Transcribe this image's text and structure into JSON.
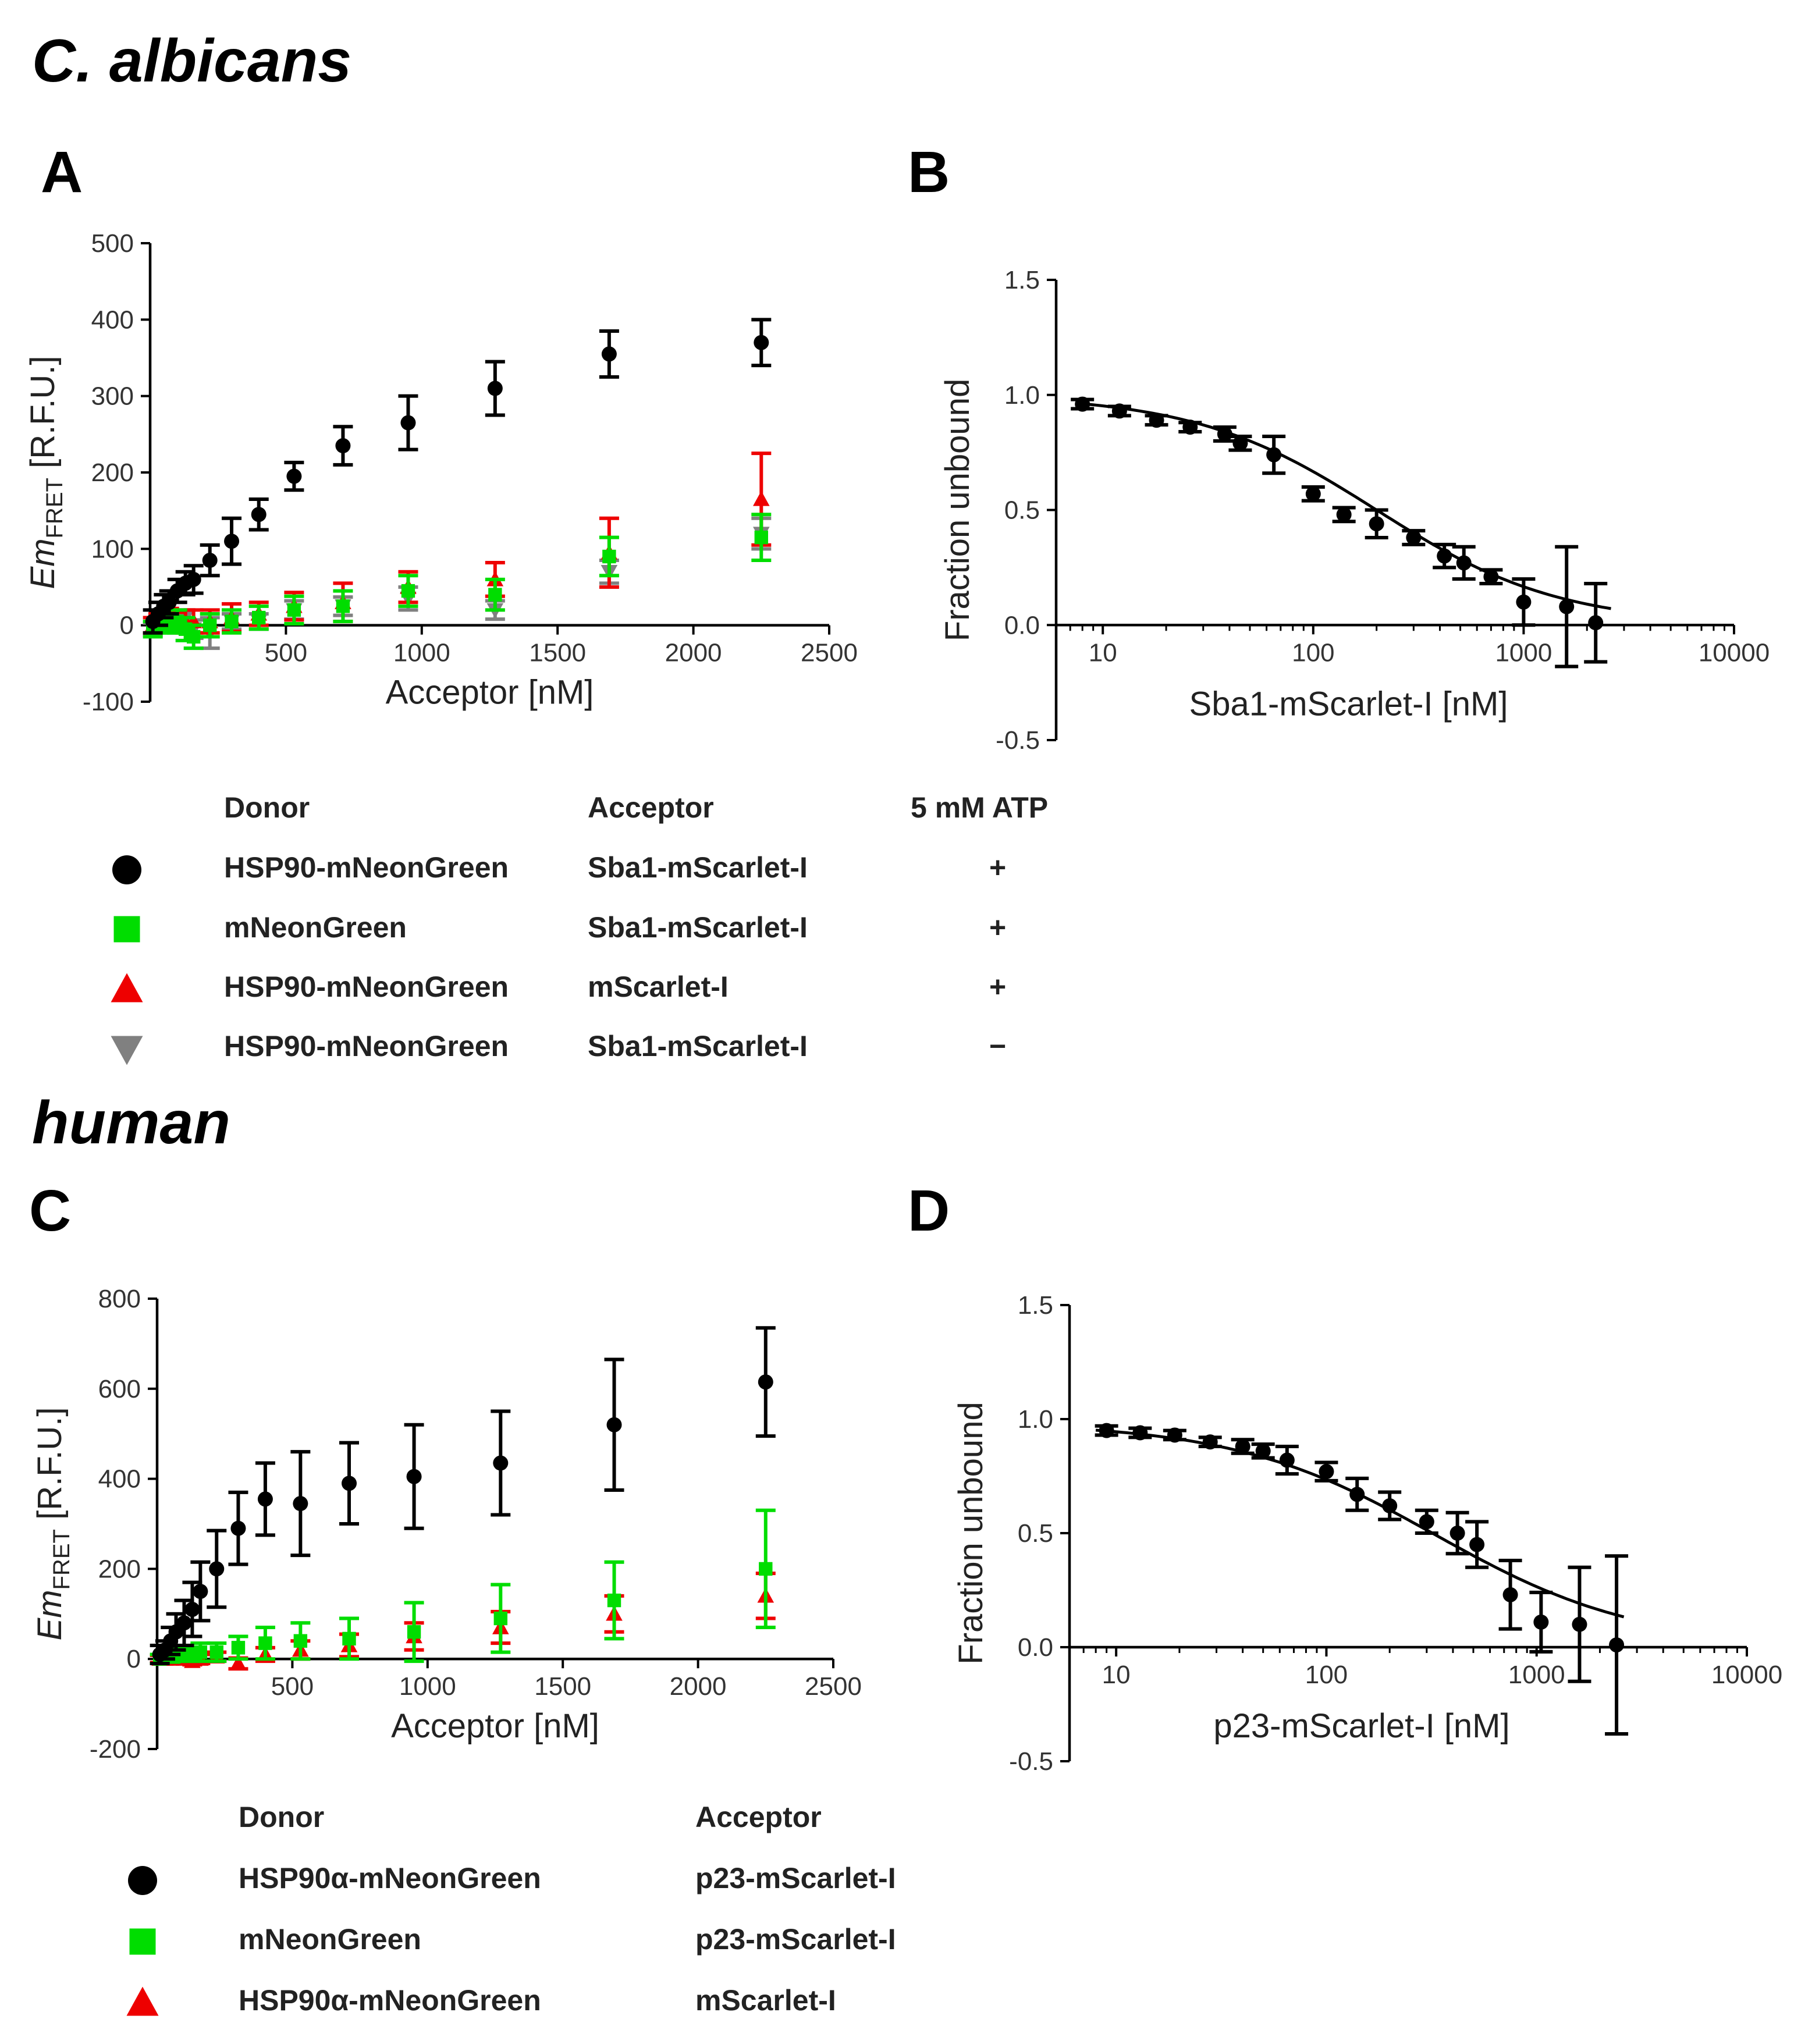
{
  "sections": {
    "top": "C. albicans",
    "bottom": "human"
  },
  "panel_labels": [
    "A",
    "B",
    "C",
    "D"
  ],
  "legend_top": {
    "headers": [
      "Donor",
      "Acceptor",
      "5 mM ATP"
    ],
    "rows": [
      {
        "donor": "HSP90-mNeonGreen",
        "acceptor": "Sba1-mScarlet-I",
        "atp": "+",
        "marker": "circle",
        "color": "#000000"
      },
      {
        "donor": "mNeonGreen",
        "acceptor": "Sba1-mScarlet-I",
        "atp": "+",
        "marker": "square",
        "color": "#00dd00"
      },
      {
        "donor": "HSP90-mNeonGreen",
        "acceptor": "mScarlet-I",
        "atp": "+",
        "marker": "triangle-up",
        "color": "#ee0000"
      },
      {
        "donor": "HSP90-mNeonGreen",
        "acceptor": "Sba1-mScarlet-I",
        "atp": "−",
        "marker": "triangle-down",
        "color": "#808080"
      }
    ]
  },
  "legend_bottom": {
    "headers": [
      "Donor",
      "Acceptor"
    ],
    "rows": [
      {
        "donor": "HSP90α-mNeonGreen",
        "acceptor": "p23-mScarlet-I",
        "marker": "circle",
        "color": "#000000"
      },
      {
        "donor": "mNeonGreen",
        "acceptor": "p23-mScarlet-I",
        "marker": "square",
        "color": "#00dd00"
      },
      {
        "donor": "HSP90α-mNeonGreen",
        "acceptor": "mScarlet-I",
        "marker": "triangle-up",
        "color": "#ee0000"
      }
    ]
  },
  "chart_data": [
    {
      "id": "A",
      "type": "scatter",
      "ylabel_main": "Em",
      "ylabel_sub": "FRET",
      "ylabel_unit": "[R.F.U.]",
      "xlabel": "Acceptor [nM]",
      "xlim": [
        0,
        2500
      ],
      "ylim": [
        -100,
        500
      ],
      "xticks": [
        500,
        1000,
        1500,
        2000,
        2500
      ],
      "yticks": [
        -100,
        0,
        100,
        200,
        300,
        400,
        500
      ],
      "series": [
        {
          "name": "HSP90-mNeonGreen + Sba1-mScarlet-I (+ATP)",
          "marker": "circle",
          "color": "#000000",
          "x": [
            10,
            30,
            50,
            70,
            100,
            130,
            160,
            220,
            300,
            400,
            530,
            710,
            950,
            1270,
            1690,
            2250
          ],
          "y": [
            5,
            15,
            25,
            30,
            45,
            55,
            60,
            85,
            110,
            145,
            195,
            235,
            265,
            310,
            355,
            370
          ],
          "err": [
            15,
            15,
            15,
            15,
            15,
            15,
            18,
            20,
            30,
            20,
            18,
            25,
            35,
            35,
            30,
            30
          ]
        },
        {
          "name": "mNeonGreen + Sba1-mScarlet-I (+ATP)",
          "marker": "square",
          "color": "#00dd00",
          "x": [
            10,
            30,
            50,
            70,
            100,
            130,
            160,
            220,
            300,
            400,
            530,
            710,
            950,
            1270,
            1690,
            2250
          ],
          "y": [
            -5,
            0,
            5,
            0,
            5,
            -5,
            -15,
            0,
            5,
            10,
            20,
            25,
            45,
            40,
            90,
            115
          ],
          "err": [
            10,
            10,
            10,
            10,
            15,
            15,
            15,
            15,
            15,
            15,
            18,
            20,
            20,
            20,
            25,
            30
          ]
        },
        {
          "name": "HSP90-mNeonGreen + mScarlet-I (+ATP)",
          "marker": "triangle-up",
          "color": "#ee0000",
          "x": [
            10,
            30,
            50,
            70,
            100,
            130,
            160,
            220,
            300,
            400,
            530,
            710,
            950,
            1270,
            1690,
            2250
          ],
          "y": [
            0,
            5,
            5,
            10,
            5,
            5,
            5,
            5,
            10,
            15,
            25,
            30,
            50,
            60,
            95,
            165
          ],
          "err": [
            10,
            10,
            12,
            12,
            12,
            15,
            15,
            15,
            18,
            15,
            18,
            25,
            20,
            22,
            45,
            60
          ]
        },
        {
          "name": "HSP90-mNeonGreen + Sba1-mScarlet-I (−ATP)",
          "marker": "triangle-down",
          "color": "#808080",
          "x": [
            10,
            30,
            50,
            70,
            100,
            130,
            160,
            220,
            300,
            400,
            530,
            710,
            950,
            1270,
            1690,
            2250
          ],
          "y": [
            -5,
            5,
            0,
            5,
            0,
            10,
            -5,
            -10,
            5,
            5,
            20,
            25,
            35,
            20,
            70,
            120
          ],
          "err": [
            8,
            8,
            8,
            8,
            10,
            10,
            12,
            20,
            10,
            10,
            12,
            12,
            15,
            12,
            15,
            20
          ]
        }
      ]
    },
    {
      "id": "B",
      "type": "scatter",
      "xscale": "log",
      "ylabel": "Fraction unbound",
      "xlabel": "Sba1-mScarlet-I [nM]",
      "xlim": [
        6,
        10000
      ],
      "ylim": [
        -0.5,
        1.5
      ],
      "xticks": [
        10,
        100,
        1000,
        10000
      ],
      "xtick_labels": [
        "10",
        "100",
        "1000",
        "10000"
      ],
      "yticks": [
        -0.5,
        0.0,
        0.5,
        1.0,
        1.5
      ],
      "ytick_labels": [
        "-0.5",
        "0.0",
        "0.5",
        "1.0",
        "1.5"
      ],
      "series": [
        {
          "name": "data",
          "marker": "circle",
          "color": "#000000",
          "x": [
            8,
            12,
            18,
            26,
            38,
            45,
            65,
            100,
            140,
            200,
            300,
            420,
            520,
            700,
            1000,
            1600,
            2200
          ],
          "y": [
            0.96,
            0.93,
            0.89,
            0.86,
            0.83,
            0.79,
            0.74,
            0.57,
            0.48,
            0.44,
            0.38,
            0.3,
            0.27,
            0.21,
            0.1,
            0.08,
            0.01
          ],
          "err": [
            0.02,
            0.02,
            0.02,
            0.02,
            0.03,
            0.03,
            0.08,
            0.03,
            0.03,
            0.06,
            0.03,
            0.05,
            0.07,
            0.03,
            0.1,
            0.26,
            0.17
          ]
        },
        {
          "name": "fit",
          "type": "curve",
          "color": "#000000",
          "ic50": 200,
          "hill": 1.0,
          "top": 1.0,
          "bottom": 0.0
        }
      ]
    },
    {
      "id": "C",
      "type": "scatter",
      "ylabel_main": "Em",
      "ylabel_sub": "FRET",
      "ylabel_unit": "[R.F.U.]",
      "xlabel": "Acceptor  [nM]",
      "xlim": [
        0,
        2500
      ],
      "ylim": [
        -200,
        800
      ],
      "xticks": [
        500,
        1000,
        1500,
        2000,
        2500
      ],
      "yticks": [
        -200,
        0,
        200,
        400,
        600,
        800
      ],
      "series": [
        {
          "name": "HSP90α-mNeonGreen + p23-mScarlet-I",
          "marker": "circle",
          "color": "#000000",
          "x": [
            10,
            30,
            50,
            70,
            100,
            130,
            160,
            220,
            300,
            400,
            530,
            710,
            950,
            1270,
            1690,
            2250
          ],
          "y": [
            10,
            20,
            40,
            60,
            80,
            110,
            150,
            200,
            290,
            355,
            345,
            390,
            405,
            435,
            520,
            615
          ],
          "err": [
            20,
            20,
            30,
            40,
            50,
            60,
            65,
            85,
            80,
            80,
            115,
            90,
            115,
            115,
            145,
            120
          ]
        },
        {
          "name": "mNeonGreen + p23-mScarlet-I",
          "marker": "square",
          "color": "#00dd00",
          "x": [
            10,
            30,
            50,
            70,
            100,
            130,
            160,
            220,
            300,
            400,
            530,
            710,
            950,
            1270,
            1690,
            2250
          ],
          "y": [
            0,
            5,
            5,
            10,
            10,
            10,
            15,
            15,
            25,
            35,
            40,
            45,
            60,
            90,
            130,
            200
          ],
          "err": [
            10,
            10,
            12,
            15,
            15,
            15,
            20,
            20,
            25,
            35,
            40,
            45,
            65,
            75,
            85,
            130
          ]
        },
        {
          "name": "HSP90α-mNeonGreen + mScarlet-I",
          "marker": "triangle-up",
          "color": "#ee0000",
          "x": [
            10,
            30,
            50,
            70,
            100,
            130,
            160,
            220,
            300,
            400,
            530,
            710,
            950,
            1270,
            1690,
            2250
          ],
          "y": [
            0,
            0,
            0,
            5,
            0,
            -5,
            0,
            5,
            -10,
            10,
            20,
            30,
            50,
            70,
            100,
            140
          ],
          "err": [
            8,
            8,
            8,
            8,
            8,
            8,
            10,
            10,
            12,
            15,
            20,
            25,
            30,
            35,
            40,
            50
          ]
        }
      ]
    },
    {
      "id": "D",
      "type": "scatter",
      "xscale": "log",
      "ylabel": "Fraction unbound",
      "xlabel": "p23-mScarlet-I [nM]",
      "xlim": [
        6,
        10000
      ],
      "ylim": [
        -0.5,
        1.5
      ],
      "xticks": [
        10,
        100,
        1000,
        10000
      ],
      "xtick_labels": [
        "10",
        "100",
        "1000",
        "10000"
      ],
      "yticks": [
        -0.5,
        0.0,
        0.5,
        1.0,
        1.5
      ],
      "ytick_labels": [
        "-0.5",
        "0.0",
        "0.5",
        "1.0",
        "1.5"
      ],
      "series": [
        {
          "name": "data",
          "marker": "circle",
          "color": "#000000",
          "x": [
            9,
            13,
            19,
            28,
            40,
            50,
            65,
            100,
            140,
            200,
            300,
            420,
            520,
            750,
            1050,
            1600,
            2400
          ],
          "y": [
            0.95,
            0.94,
            0.93,
            0.9,
            0.88,
            0.86,
            0.82,
            0.77,
            0.67,
            0.62,
            0.55,
            0.5,
            0.45,
            0.23,
            0.11,
            0.1,
            0.01
          ],
          "err": [
            0.02,
            0.02,
            0.02,
            0.02,
            0.03,
            0.03,
            0.06,
            0.04,
            0.07,
            0.06,
            0.05,
            0.09,
            0.1,
            0.15,
            0.13,
            0.25,
            0.39
          ]
        },
        {
          "name": "fit",
          "type": "curve",
          "color": "#000000",
          "ic50": 330,
          "hill": 0.9,
          "top": 0.985,
          "bottom": 0.0
        }
      ]
    }
  ]
}
